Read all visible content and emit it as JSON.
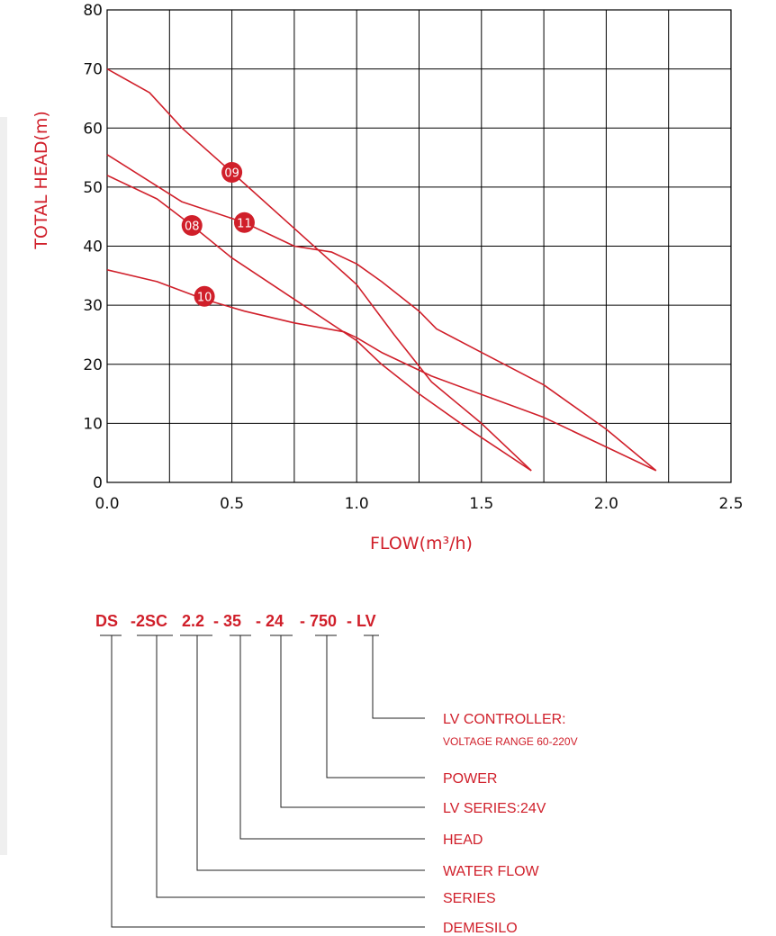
{
  "chart_data": {
    "type": "line",
    "xlabel": "FLOW(m³/h)",
    "ylabel": "TOTAL HEAD(m)",
    "xlim": [
      0,
      2.5
    ],
    "ylim": [
      0,
      80
    ],
    "x_ticks": [
      "0.0",
      "0.5",
      "1.0",
      "1.5",
      "2.0",
      "2.5"
    ],
    "y_ticks": [
      "0",
      "10",
      "20",
      "30",
      "40",
      "50",
      "60",
      "70",
      "80"
    ],
    "grid": true,
    "line_color": "#d01f2a",
    "series": [
      {
        "name": "09",
        "label_at": [
          0.5,
          52.5
        ],
        "points": [
          [
            0,
            70
          ],
          [
            0.17,
            66
          ],
          [
            0.3,
            60
          ],
          [
            0.5,
            52.5
          ],
          [
            0.75,
            43
          ],
          [
            1.0,
            33.5
          ],
          [
            1.15,
            25
          ],
          [
            1.3,
            17
          ],
          [
            1.5,
            10
          ],
          [
            1.7,
            2
          ]
        ]
      },
      {
        "name": "11",
        "label_at": [
          0.55,
          44
        ],
        "points": [
          [
            0,
            55.5
          ],
          [
            0.3,
            47.5
          ],
          [
            0.55,
            44
          ],
          [
            0.75,
            40
          ],
          [
            0.9,
            39
          ],
          [
            1.0,
            37
          ],
          [
            1.1,
            34
          ],
          [
            1.25,
            29
          ],
          [
            1.32,
            26
          ],
          [
            1.5,
            22
          ],
          [
            1.75,
            16.5
          ],
          [
            2.0,
            9
          ],
          [
            2.2,
            2
          ]
        ]
      },
      {
        "name": "08",
        "label_at": [
          0.34,
          43.5
        ],
        "points": [
          [
            0,
            52
          ],
          [
            0.2,
            48
          ],
          [
            0.34,
            43.5
          ],
          [
            0.5,
            38
          ],
          [
            0.75,
            31
          ],
          [
            1.0,
            24
          ],
          [
            1.1,
            20
          ],
          [
            1.25,
            15
          ],
          [
            1.45,
            9
          ],
          [
            1.7,
            2
          ]
        ]
      },
      {
        "name": "10",
        "label_at": [
          0.39,
          31.5
        ],
        "points": [
          [
            0,
            36
          ],
          [
            0.2,
            34
          ],
          [
            0.39,
            31
          ],
          [
            0.55,
            29
          ],
          [
            0.75,
            27
          ],
          [
            0.95,
            25.5
          ],
          [
            1.0,
            24.5
          ],
          [
            1.1,
            22
          ],
          [
            1.3,
            18
          ],
          [
            1.75,
            11
          ],
          [
            2.2,
            2
          ]
        ]
      }
    ]
  },
  "model_code": {
    "segments": [
      "DS",
      "-2SC",
      "2.2",
      "- 35",
      "- 24",
      "- 750",
      "- LV"
    ],
    "descriptions": [
      {
        "title": "DEMESILO"
      },
      {
        "title": "SERIES"
      },
      {
        "title": "WATER FLOW"
      },
      {
        "title": "HEAD"
      },
      {
        "title": "LV SERIES:24V"
      },
      {
        "title": "POWER"
      },
      {
        "title": "LV CONTROLLER:",
        "subtitle": "VOLTAGE RANGE 60-220V"
      }
    ]
  }
}
